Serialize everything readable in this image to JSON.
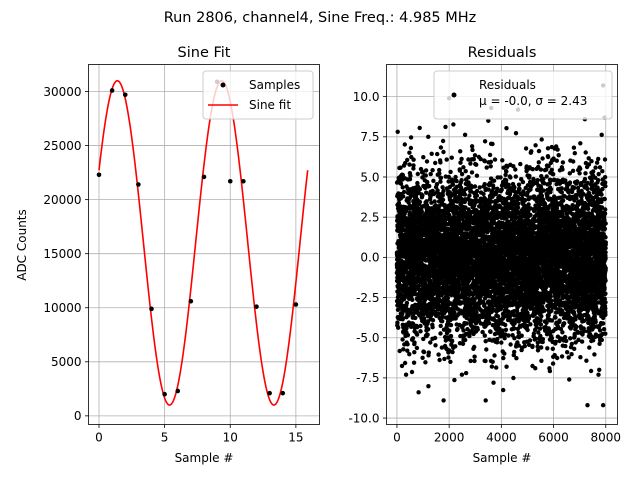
{
  "figure": {
    "suptitle": "Run 2806, channel4, Sine Freq.: 4.985 MHz"
  },
  "chart_data": [
    {
      "type": "scatter",
      "title": "Sine Fit",
      "xlabel": "Sample #",
      "ylabel": "ADC Counts",
      "xlim": [
        -0.8,
        16.8
      ],
      "ylim": [
        -800,
        32500
      ],
      "xticks": [
        0,
        5,
        10,
        15
      ],
      "yticks": [
        0,
        5000,
        10000,
        15000,
        20000,
        25000,
        30000
      ],
      "grid": true,
      "legend": {
        "location": "top-right",
        "entries": [
          "Samples",
          "Sine fit"
        ]
      },
      "series": [
        {
          "name": "Samples",
          "kind": "points",
          "color": "#000000",
          "x": [
            0,
            1,
            2,
            3,
            4,
            5,
            6,
            7,
            8,
            9,
            10,
            11,
            12,
            13,
            14,
            15
          ],
          "y": [
            22300,
            30100,
            29700,
            21400,
            9900,
            2000,
            2300,
            10600,
            22100,
            30900,
            21700,
            21700,
            10100,
            2100,
            2100,
            10300
          ]
        },
        {
          "name": "Sine fit",
          "kind": "line",
          "color": "#ff0000",
          "model": {
            "offset": 16000,
            "amplitude": 15000,
            "period": 7.95,
            "peak_at": 1.4
          },
          "x_range": [
            0,
            15.9
          ]
        }
      ]
    },
    {
      "type": "scatter",
      "title": "Residuals",
      "xlabel": "Sample #",
      "ylabel": "",
      "xlim": [
        -400,
        8450
      ],
      "ylim": [
        -10.4,
        12.0
      ],
      "xticks": [
        0,
        2000,
        4000,
        6000,
        8000
      ],
      "yticks": [
        -10.0,
        -7.5,
        -5.0,
        -2.5,
        0.0,
        2.5,
        5.0,
        7.5,
        10.0
      ],
      "grid": true,
      "legend": {
        "location": "top-right",
        "entries": [
          "Residuals",
          "μ = -0.0, σ = 2.43"
        ]
      },
      "series": [
        {
          "name": "Residuals",
          "kind": "points",
          "color": "#000000",
          "n_points": 8000,
          "x_range": [
            0,
            8000
          ],
          "mean": 0.0,
          "std": 2.43,
          "ymin": -9.2,
          "ymax": 10.7,
          "outliers": [
            [
              2000,
              9.9
            ],
            [
              2100,
              6.2
            ],
            [
              7900,
              10.7
            ],
            [
              7950,
              8.7
            ],
            [
              7200,
              8.6
            ],
            [
              3500,
              8.5
            ],
            [
              830,
              -8.4
            ],
            [
              3400,
              -8.9
            ],
            [
              7900,
              -9.2
            ],
            [
              7750,
              -7.0
            ],
            [
              350,
              -7.3
            ],
            [
              2650,
              -7.2
            ],
            [
              6600,
              -7.6
            ],
            [
              5300,
              -6.9
            ],
            [
              4200,
              -6.8
            ],
            [
              1200,
              7.5
            ],
            [
              6100,
              6.9
            ],
            [
              3700,
              -7.8
            ]
          ]
        }
      ]
    }
  ]
}
